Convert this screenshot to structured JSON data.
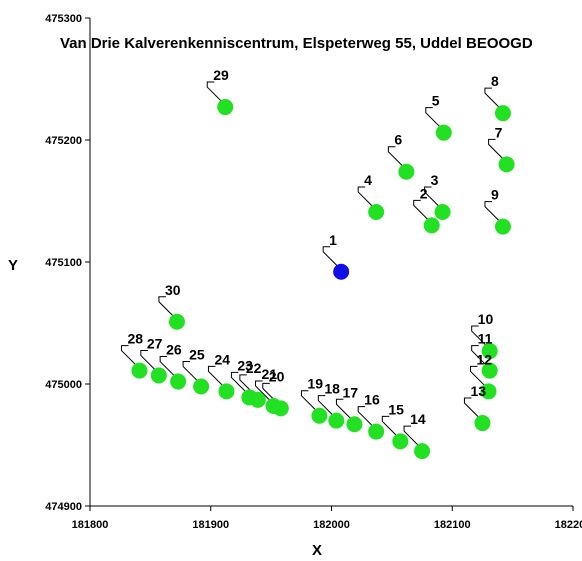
{
  "chart_data": {
    "type": "scatter",
    "title": "Van Drie Kalverenkenniscentrum, Elspeterweg 55, Uddel BEOOGD",
    "xlabel": "X",
    "ylabel": "Y",
    "xlim": [
      181800,
      182200
    ],
    "ylim": [
      474900,
      475300
    ],
    "xticks": [
      "181800",
      "181900",
      "182000",
      "182100",
      "182200"
    ],
    "yticks": [
      "474900",
      "475000",
      "475100",
      "475200",
      "475300"
    ],
    "grid": false,
    "colors": {
      "source": "#1010e6",
      "receptor": "#22e022"
    },
    "points": [
      {
        "label": "1",
        "x": 182008,
        "y": 475092,
        "kind": "source"
      },
      {
        "label": "2",
        "x": 182083,
        "y": 475130,
        "kind": "receptor"
      },
      {
        "label": "3",
        "x": 182092,
        "y": 475141,
        "kind": "receptor"
      },
      {
        "label": "4",
        "x": 182037,
        "y": 475141,
        "kind": "receptor"
      },
      {
        "label": "5",
        "x": 182093,
        "y": 475206,
        "kind": "receptor"
      },
      {
        "label": "6",
        "x": 182062,
        "y": 475174,
        "kind": "receptor"
      },
      {
        "label": "7",
        "x": 182145,
        "y": 475180,
        "kind": "receptor"
      },
      {
        "label": "8",
        "x": 182142,
        "y": 475222,
        "kind": "receptor"
      },
      {
        "label": "9",
        "x": 182142,
        "y": 475129,
        "kind": "receptor"
      },
      {
        "label": "10",
        "x": 182131,
        "y": 475027,
        "kind": "receptor"
      },
      {
        "label": "11",
        "x": 182131,
        "y": 475011,
        "kind": "receptor"
      },
      {
        "label": "12",
        "x": 182130,
        "y": 474994,
        "kind": "receptor"
      },
      {
        "label": "13",
        "x": 182125,
        "y": 474968,
        "kind": "receptor"
      },
      {
        "label": "14",
        "x": 182075,
        "y": 474945,
        "kind": "receptor"
      },
      {
        "label": "15",
        "x": 182057,
        "y": 474953,
        "kind": "receptor"
      },
      {
        "label": "16",
        "x": 182037,
        "y": 474961,
        "kind": "receptor"
      },
      {
        "label": "17",
        "x": 182019,
        "y": 474967,
        "kind": "receptor"
      },
      {
        "label": "18",
        "x": 182004,
        "y": 474970,
        "kind": "receptor"
      },
      {
        "label": "19",
        "x": 181990,
        "y": 474974,
        "kind": "receptor"
      },
      {
        "label": "20",
        "x": 181958,
        "y": 474980,
        "kind": "receptor"
      },
      {
        "label": "21",
        "x": 181952,
        "y": 474982,
        "kind": "receptor"
      },
      {
        "label": "22",
        "x": 181939,
        "y": 474987,
        "kind": "receptor"
      },
      {
        "label": "23",
        "x": 181932,
        "y": 474989,
        "kind": "receptor"
      },
      {
        "label": "24",
        "x": 181913,
        "y": 474994,
        "kind": "receptor"
      },
      {
        "label": "25",
        "x": 181892,
        "y": 474998,
        "kind": "receptor"
      },
      {
        "label": "26",
        "x": 181873,
        "y": 475002,
        "kind": "receptor"
      },
      {
        "label": "27",
        "x": 181857,
        "y": 475007,
        "kind": "receptor"
      },
      {
        "label": "28",
        "x": 181841,
        "y": 475011,
        "kind": "receptor"
      },
      {
        "label": "29",
        "x": 181912,
        "y": 475227,
        "kind": "receptor"
      },
      {
        "label": "30",
        "x": 181872,
        "y": 475051,
        "kind": "receptor"
      }
    ]
  }
}
